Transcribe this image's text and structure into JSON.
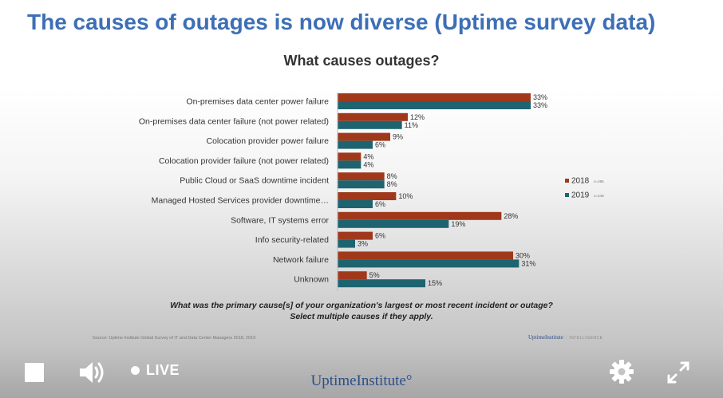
{
  "slide": {
    "title": "The causes of outages is now diverse (Uptime survey data)"
  },
  "chart_data": {
    "type": "bar",
    "orientation": "horizontal",
    "title": "What causes outages?",
    "categories": [
      "On-premises data center power failure",
      "On-premises data center failure (not power related)",
      "Colocation provider power failure",
      "Colocation provider failure (not power related)",
      "Public Cloud or SaaS downtime incident",
      "Managed Hosted Services provider downtime…",
      "Software, IT systems error",
      "Info security-related",
      "Network failure",
      "Unknown"
    ],
    "series": [
      {
        "name": "2018",
        "note": "n=285",
        "color": "#a0391b",
        "values": [
          33,
          12,
          9,
          4,
          8,
          10,
          28,
          6,
          30,
          5
        ]
      },
      {
        "name": "2019",
        "note": "n=449",
        "color": "#1d6470",
        "values": [
          33,
          11,
          6,
          4,
          8,
          6,
          19,
          3,
          31,
          15
        ]
      }
    ],
    "value_suffix": "%",
    "xlim": [
      0,
      33
    ],
    "legend": "right",
    "grid": false
  },
  "question": {
    "line1": "What was the primary cause[s] of your organization's largest or most recent incident or outage?",
    "line2": "Select multiple causes if they apply."
  },
  "source": "Source: Uptime Institute Global Survey of IT and Data Center Managers 2018, 2019",
  "footer_brand": {
    "name": "UptimeInstitute",
    "suffix": "INTELLIGENCE"
  },
  "player": {
    "live_label": "LIVE",
    "brand": "UptimeInstitute°",
    "icons": [
      "stop-icon",
      "volume-icon",
      "live-dot-icon",
      "gear-icon",
      "expand-icon"
    ]
  }
}
